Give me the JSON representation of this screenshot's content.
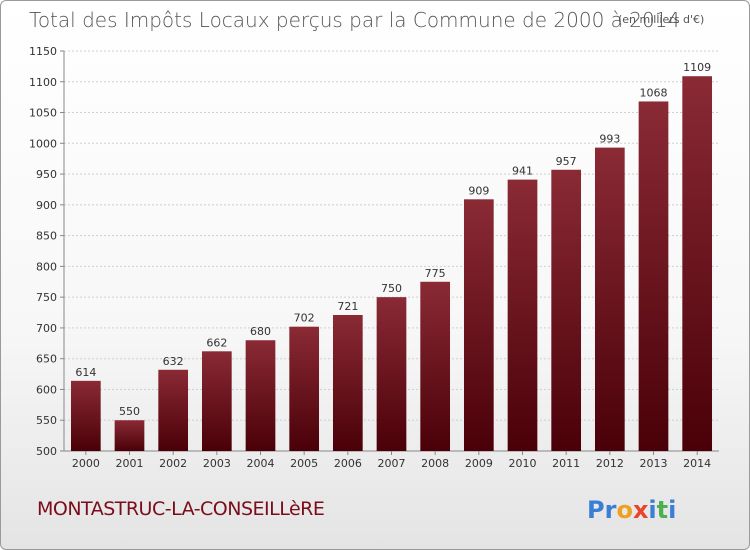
{
  "title": "Total des Impôts Locaux perçus par la Commune de 2000 à 2014",
  "unit_label": "(en milliers d'€)",
  "commune": "MONTASTRUC-LA-CONSEILLèRE",
  "logo": {
    "letters": [
      "P",
      "r",
      "o",
      "x",
      "i",
      "t",
      "i"
    ],
    "colors": [
      "#3a7fd5",
      "#3a7fd5",
      "#f0a020",
      "#e8452c",
      "#3a7fd5",
      "#4caf50",
      "#3a7fd5"
    ]
  },
  "colors": {
    "bar_top": "#8a2a35",
    "bar_bottom": "#4a0008",
    "grid": "#d0d0d0"
  },
  "chart_data": {
    "type": "bar",
    "title": "Total des Impôts Locaux perçus par la Commune de 2000 à 2014",
    "xlabel": "",
    "ylabel": "",
    "categories": [
      "2000",
      "2001",
      "2002",
      "2003",
      "2004",
      "2005",
      "2006",
      "2007",
      "2008",
      "2009",
      "2010",
      "2011",
      "2012",
      "2013",
      "2014"
    ],
    "values": [
      614,
      550,
      632,
      662,
      680,
      702,
      721,
      750,
      775,
      909,
      941,
      957,
      993,
      1068,
      1109
    ],
    "ylim": [
      500,
      1150
    ],
    "yticks": [
      500,
      550,
      600,
      650,
      700,
      750,
      800,
      850,
      900,
      950,
      1000,
      1050,
      1100,
      1150
    ],
    "grid": true
  }
}
